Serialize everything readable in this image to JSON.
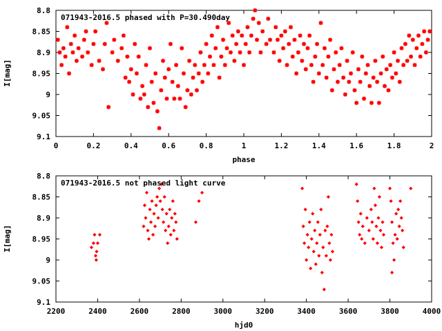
{
  "chart_data": [
    {
      "type": "scatter",
      "title": "071943-2016.5 phased with P=30.490day",
      "xlabel": "phase",
      "ylabel": "I[mag]",
      "xlim": [
        0,
        2
      ],
      "ylim": [
        9.1,
        8.8
      ],
      "y_inverted": true,
      "xticks": [
        "0",
        "0.2",
        "0.4",
        "0.6",
        "0.8",
        "1",
        "1.2",
        "1.4",
        "1.6",
        "1.8",
        "2"
      ],
      "xtick_values": [
        0,
        0.2,
        0.4,
        0.6,
        0.8,
        1,
        1.2,
        1.4,
        1.6,
        1.8,
        2
      ],
      "yticks": [
        "8.8",
        "8.85",
        "8.9",
        "8.95",
        "9",
        "9.05",
        "9.1"
      ],
      "ytick_values": [
        8.8,
        8.85,
        8.9,
        8.95,
        9.0,
        9.05,
        9.1
      ],
      "grid": false,
      "marker": "star",
      "color": "#ff0000",
      "points": [
        [
          0.01,
          8.87
        ],
        [
          0.02,
          8.9
        ],
        [
          0.03,
          8.93
        ],
        [
          0.04,
          8.89
        ],
        [
          0.05,
          8.91
        ],
        [
          0.06,
          8.84
        ],
        [
          0.07,
          8.95
        ],
        [
          0.08,
          8.88
        ],
        [
          0.09,
          8.9
        ],
        [
          0.1,
          8.86
        ],
        [
          0.11,
          8.92
        ],
        [
          0.12,
          8.89
        ],
        [
          0.14,
          8.91
        ],
        [
          0.15,
          8.87
        ],
        [
          0.16,
          8.85
        ],
        [
          0.17,
          8.9
        ],
        [
          0.19,
          8.93
        ],
        [
          0.2,
          8.88
        ],
        [
          0.21,
          8.85
        ],
        [
          0.23,
          8.92
        ],
        [
          0.25,
          8.94
        ],
        [
          0.26,
          8.88
        ],
        [
          0.27,
          8.83
        ],
        [
          0.28,
          9.03
        ],
        [
          0.3,
          8.9
        ],
        [
          0.31,
          8.87
        ],
        [
          0.33,
          8.92
        ],
        [
          0.35,
          8.89
        ],
        [
          0.36,
          8.86
        ],
        [
          0.37,
          8.96
        ],
        [
          0.38,
          8.91
        ],
        [
          0.39,
          8.97
        ],
        [
          0.4,
          8.94
        ],
        [
          0.41,
          9.0
        ],
        [
          0.42,
          8.88
        ],
        [
          0.43,
          8.95
        ],
        [
          0.44,
          8.91
        ],
        [
          0.45,
          9.01
        ],
        [
          0.46,
          8.98
        ],
        [
          0.47,
          9.0
        ],
        [
          0.48,
          8.93
        ],
        [
          0.49,
          9.03
        ],
        [
          0.5,
          8.89
        ],
        [
          0.51,
          8.97
        ],
        [
          0.52,
          9.02
        ],
        [
          0.53,
          8.95
        ],
        [
          0.54,
          9.04
        ],
        [
          0.55,
          9.08
        ],
        [
          0.56,
          8.99
        ],
        [
          0.57,
          8.92
        ],
        [
          0.58,
          8.96
        ],
        [
          0.59,
          9.01
        ],
        [
          0.6,
          8.94
        ],
        [
          0.61,
          8.88
        ],
        [
          0.62,
          8.97
        ],
        [
          0.63,
          9.01
        ],
        [
          0.64,
          8.93
        ],
        [
          0.65,
          8.98
        ],
        [
          0.66,
          9.01
        ],
        [
          0.67,
          8.89
        ],
        [
          0.68,
          8.95
        ],
        [
          0.69,
          9.03
        ],
        [
          0.7,
          8.99
        ],
        [
          0.71,
          8.92
        ],
        [
          0.72,
          9.0
        ],
        [
          0.73,
          8.96
        ],
        [
          0.74,
          8.93
        ],
        [
          0.75,
          8.99
        ],
        [
          0.76,
          8.95
        ],
        [
          0.77,
          8.9
        ],
        [
          0.78,
          8.97
        ],
        [
          0.79,
          8.93
        ],
        [
          0.8,
          8.88
        ],
        [
          0.81,
          8.95
        ],
        [
          0.82,
          8.91
        ],
        [
          0.83,
          8.86
        ],
        [
          0.84,
          8.93
        ],
        [
          0.85,
          8.89
        ],
        [
          0.86,
          8.84
        ],
        [
          0.87,
          8.96
        ],
        [
          0.88,
          8.91
        ],
        [
          0.89,
          8.87
        ],
        [
          0.9,
          8.93
        ],
        [
          0.91,
          8.89
        ],
        [
          0.92,
          8.83
        ],
        [
          0.93,
          8.9
        ],
        [
          0.94,
          8.86
        ],
        [
          0.95,
          8.92
        ],
        [
          0.96,
          8.88
        ],
        [
          0.97,
          8.85
        ],
        [
          0.98,
          8.9
        ],
        [
          0.99,
          8.86
        ],
        [
          1.0,
          8.93
        ],
        [
          1.01,
          8.88
        ],
        [
          1.02,
          8.84
        ],
        [
          1.03,
          8.9
        ],
        [
          1.04,
          8.86
        ],
        [
          1.05,
          8.82
        ],
        [
          1.06,
          8.8
        ],
        [
          1.07,
          8.87
        ],
        [
          1.08,
          8.83
        ],
        [
          1.09,
          8.9
        ],
        [
          1.1,
          8.85
        ],
        [
          1.12,
          8.88
        ],
        [
          1.13,
          8.82
        ],
        [
          1.14,
          8.87
        ],
        [
          1.16,
          8.9
        ],
        [
          1.17,
          8.84
        ],
        [
          1.18,
          8.87
        ],
        [
          1.19,
          8.92
        ],
        [
          1.2,
          8.86
        ],
        [
          1.21,
          8.89
        ],
        [
          1.22,
          8.85
        ],
        [
          1.23,
          8.93
        ],
        [
          1.24,
          8.88
        ],
        [
          1.25,
          8.84
        ],
        [
          1.26,
          8.91
        ],
        [
          1.27,
          8.87
        ],
        [
          1.28,
          8.95
        ],
        [
          1.29,
          8.9
        ],
        [
          1.3,
          8.86
        ],
        [
          1.31,
          8.92
        ],
        [
          1.32,
          8.88
        ],
        [
          1.33,
          8.94
        ],
        [
          1.34,
          8.89
        ],
        [
          1.35,
          8.86
        ],
        [
          1.36,
          8.93
        ],
        [
          1.37,
          8.97
        ],
        [
          1.38,
          8.91
        ],
        [
          1.39,
          8.88
        ],
        [
          1.4,
          8.95
        ],
        [
          1.41,
          8.83
        ],
        [
          1.42,
          8.93
        ],
        [
          1.43,
          8.89
        ],
        [
          1.44,
          8.96
        ],
        [
          1.45,
          8.91
        ],
        [
          1.46,
          8.87
        ],
        [
          1.47,
          8.99
        ],
        [
          1.48,
          8.94
        ],
        [
          1.49,
          8.9
        ],
        [
          1.5,
          8.97
        ],
        [
          1.51,
          8.93
        ],
        [
          1.52,
          8.89
        ],
        [
          1.53,
          8.96
        ],
        [
          1.54,
          9.0
        ],
        [
          1.55,
          8.92
        ],
        [
          1.56,
          8.97
        ],
        [
          1.57,
          8.95
        ],
        [
          1.58,
          8.9
        ],
        [
          1.59,
          8.99
        ],
        [
          1.6,
          9.02
        ],
        [
          1.61,
          8.94
        ],
        [
          1.62,
          8.97
        ],
        [
          1.63,
          8.91
        ],
        [
          1.64,
          9.01
        ],
        [
          1.65,
          8.95
        ],
        [
          1.66,
          8.93
        ],
        [
          1.67,
          8.98
        ],
        [
          1.68,
          9.02
        ],
        [
          1.69,
          8.96
        ],
        [
          1.7,
          8.92
        ],
        [
          1.71,
          8.97
        ],
        [
          1.72,
          9.02
        ],
        [
          1.73,
          8.95
        ],
        [
          1.74,
          8.91
        ],
        [
          1.75,
          8.98
        ],
        [
          1.76,
          8.94
        ],
        [
          1.77,
          8.99
        ],
        [
          1.78,
          8.93
        ],
        [
          1.79,
          8.96
        ],
        [
          1.8,
          8.9
        ],
        [
          1.81,
          8.95
        ],
        [
          1.82,
          8.92
        ],
        [
          1.83,
          8.97
        ],
        [
          1.84,
          8.89
        ],
        [
          1.85,
          8.93
        ],
        [
          1.86,
          8.88
        ],
        [
          1.87,
          8.92
        ],
        [
          1.88,
          8.86
        ],
        [
          1.89,
          8.91
        ],
        [
          1.9,
          8.87
        ],
        [
          1.91,
          8.93
        ],
        [
          1.92,
          8.89
        ],
        [
          1.93,
          8.86
        ],
        [
          1.94,
          8.91
        ],
        [
          1.95,
          8.88
        ],
        [
          1.96,
          8.85
        ],
        [
          1.97,
          8.9
        ],
        [
          1.98,
          8.87
        ],
        [
          1.99,
          8.85
        ]
      ]
    },
    {
      "type": "scatter",
      "title": "071943-2016.5 not phased light curve",
      "xlabel": "hjd0",
      "ylabel": "I[mag]",
      "xlim": [
        2200,
        4000
      ],
      "ylim": [
        9.1,
        8.8
      ],
      "y_inverted": true,
      "xticks": [
        "2200",
        "2400",
        "2600",
        "2800",
        "3000",
        "3200",
        "3400",
        "3600",
        "3800",
        "4000"
      ],
      "xtick_values": [
        2200,
        2400,
        2600,
        2800,
        3000,
        3200,
        3400,
        3600,
        3800,
        4000
      ],
      "yticks": [
        "8.8",
        "8.85",
        "8.9",
        "8.95",
        "9",
        "9.05",
        "9.1"
      ],
      "ytick_values": [
        8.8,
        8.85,
        8.9,
        8.95,
        9.0,
        9.05,
        9.1
      ],
      "grid": false,
      "marker": "diamond",
      "color": "#ff0000",
      "points": [
        [
          2370,
          8.97
        ],
        [
          2380,
          8.96
        ],
        [
          2385,
          8.94
        ],
        [
          2390,
          8.99
        ],
        [
          2393,
          9.0
        ],
        [
          2395,
          8.98
        ],
        [
          2400,
          8.96
        ],
        [
          2410,
          8.94
        ],
        [
          2620,
          8.92
        ],
        [
          2625,
          8.87
        ],
        [
          2630,
          8.9
        ],
        [
          2635,
          8.84
        ],
        [
          2640,
          8.93
        ],
        [
          2645,
          8.95
        ],
        [
          2650,
          8.88
        ],
        [
          2655,
          8.91
        ],
        [
          2660,
          8.86
        ],
        [
          2665,
          8.94
        ],
        [
          2670,
          8.89
        ],
        [
          2675,
          8.92
        ],
        [
          2680,
          8.87
        ],
        [
          2685,
          8.85
        ],
        [
          2690,
          8.9
        ],
        [
          2695,
          8.83
        ],
        [
          2700,
          8.86
        ],
        [
          2705,
          8.82
        ],
        [
          2710,
          8.88
        ],
        [
          2715,
          8.91
        ],
        [
          2720,
          8.85
        ],
        [
          2725,
          8.93
        ],
        [
          2730,
          8.89
        ],
        [
          2735,
          8.96
        ],
        [
          2740,
          8.92
        ],
        [
          2745,
          8.88
        ],
        [
          2750,
          8.94
        ],
        [
          2755,
          8.9
        ],
        [
          2760,
          8.86
        ],
        [
          2765,
          8.93
        ],
        [
          2770,
          8.89
        ],
        [
          2775,
          8.91
        ],
        [
          2780,
          8.95
        ],
        [
          2870,
          8.91
        ],
        [
          2885,
          8.86
        ],
        [
          2900,
          8.84
        ],
        [
          3380,
          8.83
        ],
        [
          3385,
          8.92
        ],
        [
          3390,
          8.96
        ],
        [
          3395,
          8.88
        ],
        [
          3400,
          9.0
        ],
        [
          3405,
          8.94
        ],
        [
          3410,
          8.97
        ],
        [
          3415,
          8.91
        ],
        [
          3420,
          9.02
        ],
        [
          3425,
          8.95
        ],
        [
          3430,
          8.89
        ],
        [
          3435,
          8.98
        ],
        [
          3440,
          8.93
        ],
        [
          3445,
          9.01
        ],
        [
          3450,
          8.96
        ],
        [
          3455,
          8.91
        ],
        [
          3460,
          8.99
        ],
        [
          3465,
          8.94
        ],
        [
          3470,
          8.88
        ],
        [
          3475,
          9.03
        ],
        [
          3480,
          8.97
        ],
        [
          3485,
          9.07
        ],
        [
          3490,
          8.93
        ],
        [
          3495,
          8.99
        ],
        [
          3500,
          8.92
        ],
        [
          3505,
          8.85
        ],
        [
          3510,
          8.96
        ],
        [
          3515,
          9.0
        ],
        [
          3520,
          8.94
        ],
        [
          3525,
          8.98
        ],
        [
          3640,
          8.82
        ],
        [
          3645,
          8.86
        ],
        [
          3650,
          8.91
        ],
        [
          3655,
          8.94
        ],
        [
          3660,
          8.89
        ],
        [
          3665,
          8.95
        ],
        [
          3670,
          8.92
        ],
        [
          3680,
          8.96
        ],
        [
          3690,
          8.9
        ],
        [
          3700,
          8.93
        ],
        [
          3710,
          8.88
        ],
        [
          3715,
          8.91
        ],
        [
          3720,
          8.95
        ],
        [
          3725,
          8.83
        ],
        [
          3730,
          8.87
        ],
        [
          3735,
          8.92
        ],
        [
          3740,
          8.96
        ],
        [
          3745,
          8.9
        ],
        [
          3750,
          8.85
        ],
        [
          3755,
          8.93
        ],
        [
          3760,
          8.97
        ],
        [
          3765,
          8.91
        ],
        [
          3770,
          8.94
        ],
        [
          3800,
          8.83
        ],
        [
          3805,
          8.86
        ],
        [
          3810,
          8.91
        ],
        [
          3815,
          8.96
        ],
        [
          3820,
          9.0
        ],
        [
          3825,
          8.94
        ],
        [
          3830,
          8.89
        ],
        [
          3835,
          8.95
        ],
        [
          3840,
          8.88
        ],
        [
          3845,
          8.92
        ],
        [
          3850,
          8.86
        ],
        [
          3855,
          8.9
        ],
        [
          3860,
          8.93
        ],
        [
          3865,
          8.97
        ],
        [
          3810,
          9.03
        ],
        [
          3900,
          8.83
        ]
      ]
    }
  ]
}
